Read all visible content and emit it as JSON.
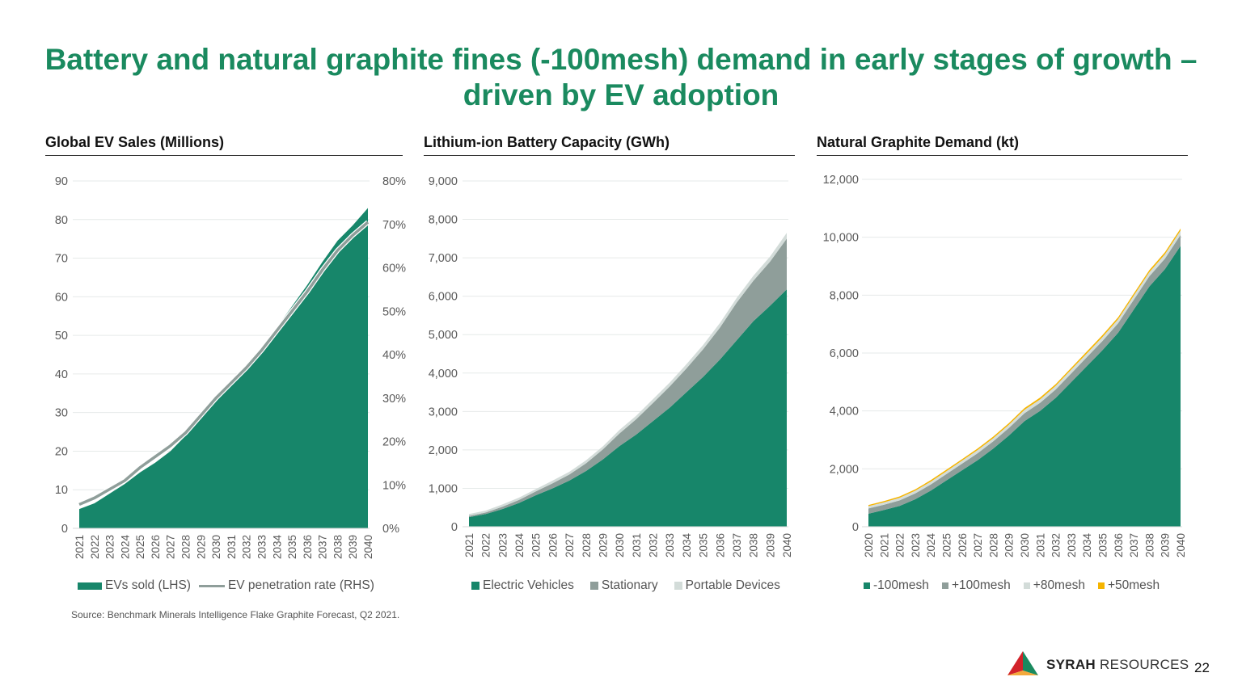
{
  "title": "Battery and natural graphite fines (-100mesh) demand in early stages of growth – driven by EV adoption",
  "source": "Source: Benchmark Minerals Intelligence Flake Graphite Forecast, Q2 2021.",
  "footer": {
    "brand_bold": "SYRAH",
    "brand_light": " RESOURCES",
    "page_number": "22"
  },
  "colors": {
    "green": "#17866a",
    "grey": "#8f9e9a",
    "light": "#d3dcd9",
    "orange": "#f5b400",
    "title": "#1a8a5f"
  },
  "chart_data": [
    {
      "type": "area",
      "title": "Global EV Sales (Millions)",
      "x": [
        "2021",
        "2022",
        "2023",
        "2024",
        "2025",
        "2026",
        "2027",
        "2028",
        "2029",
        "2030",
        "2031",
        "2032",
        "2033",
        "2034",
        "2035",
        "2036",
        "2037",
        "2038",
        "2039",
        "2040"
      ],
      "ylim": [
        0,
        90
      ],
      "yticks": [
        "0",
        "10",
        "20",
        "30",
        "40",
        "50",
        "60",
        "70",
        "80",
        "90"
      ],
      "y2lim": [
        0,
        80
      ],
      "y2ticks": [
        "0%",
        "10%",
        "20%",
        "30%",
        "40%",
        "50%",
        "60%",
        "70%",
        "80%"
      ],
      "series": [
        {
          "name": "EVs sold (LHS)",
          "kind": "area",
          "axis": "left",
          "color": "#17866a",
          "values": [
            5,
            6.5,
            9,
            11.5,
            14.5,
            17,
            20,
            24,
            29,
            34,
            38,
            42.5,
            47,
            52,
            57.5,
            63,
            69,
            74.5,
            78.5,
            83
          ]
        },
        {
          "name": "EV penetration rate (RHS)",
          "kind": "line",
          "axis": "right",
          "color": "#8f9e9a",
          "values": [
            5.5,
            7,
            9,
            11,
            14,
            16.5,
            19,
            22,
            26,
            30,
            33.5,
            37,
            41,
            45.5,
            50,
            54.5,
            59.5,
            64,
            67.5,
            70.5
          ]
        }
      ],
      "grid": true,
      "legend": "bottom"
    },
    {
      "type": "area",
      "stacked": true,
      "title": "Lithium-ion Battery Capacity (GWh)",
      "x": [
        "2021",
        "2022",
        "2023",
        "2024",
        "2025",
        "2026",
        "2027",
        "2028",
        "2029",
        "2030",
        "2031",
        "2032",
        "2033",
        "2034",
        "2035",
        "2036",
        "2037",
        "2038",
        "2039",
        "2040"
      ],
      "ylim": [
        0,
        9000
      ],
      "yticks": [
        "0",
        "1,000",
        "2,000",
        "3,000",
        "4,000",
        "5,000",
        "6,000",
        "7,000",
        "8,000",
        "9,000"
      ],
      "series": [
        {
          "name": "Electric Vehicles",
          "color": "#17866a",
          "values": [
            250,
            330,
            460,
            620,
            820,
            1000,
            1200,
            1450,
            1750,
            2100,
            2400,
            2750,
            3100,
            3500,
            3900,
            4350,
            4850,
            5350,
            5750,
            6180
          ]
        },
        {
          "name": "Stationary",
          "color": "#8f9e9a",
          "values": [
            30,
            40,
            60,
            80,
            100,
            130,
            160,
            200,
            260,
            330,
            400,
            470,
            550,
            620,
            720,
            830,
            980,
            1050,
            1150,
            1320
          ]
        },
        {
          "name": "Portable Devices",
          "color": "#d3dcd9",
          "values": [
            50,
            50,
            60,
            60,
            60,
            70,
            70,
            80,
            80,
            90,
            90,
            100,
            100,
            110,
            110,
            120,
            120,
            130,
            130,
            150
          ]
        }
      ],
      "grid": true,
      "legend": "bottom"
    },
    {
      "type": "area",
      "stacked": true,
      "title": "Natural Graphite Demand (kt)",
      "x": [
        "2020",
        "2021",
        "2022",
        "2023",
        "2024",
        "2025",
        "2026",
        "2027",
        "2028",
        "2029",
        "2030",
        "2031",
        "2032",
        "2033",
        "2034",
        "2035",
        "2036",
        "2037",
        "2038",
        "2039",
        "2040"
      ],
      "ylim": [
        0,
        12000
      ],
      "yticks": [
        "0",
        "2,000",
        "4,000",
        "6,000",
        "8,000",
        "10,000",
        "12,000"
      ],
      "series": [
        {
          "name": "-100mesh",
          "color": "#17866a",
          "values": [
            450,
            580,
            720,
            950,
            1250,
            1600,
            1950,
            2300,
            2700,
            3150,
            3650,
            4000,
            4450,
            5000,
            5550,
            6100,
            6700,
            7500,
            8300,
            8900,
            9700
          ]
        },
        {
          "name": "+100mesh",
          "color": "#8f9e9a",
          "values": [
            180,
            180,
            190,
            200,
            210,
            220,
            230,
            240,
            250,
            260,
            270,
            280,
            290,
            300,
            310,
            320,
            330,
            340,
            350,
            360,
            380
          ]
        },
        {
          "name": "+80mesh",
          "color": "#d3dcd9",
          "values": [
            80,
            85,
            90,
            95,
            100,
            100,
            105,
            110,
            110,
            115,
            120,
            120,
            125,
            130,
            130,
            135,
            140,
            140,
            145,
            150,
            150
          ]
        },
        {
          "name": "+50mesh",
          "color": "#f5b400",
          "values": [
            40,
            40,
            45,
            45,
            50,
            50,
            50,
            55,
            55,
            55,
            60,
            60,
            60,
            60,
            65,
            65,
            65,
            70,
            70,
            70,
            70
          ]
        }
      ],
      "grid": true,
      "legend": "bottom"
    }
  ]
}
